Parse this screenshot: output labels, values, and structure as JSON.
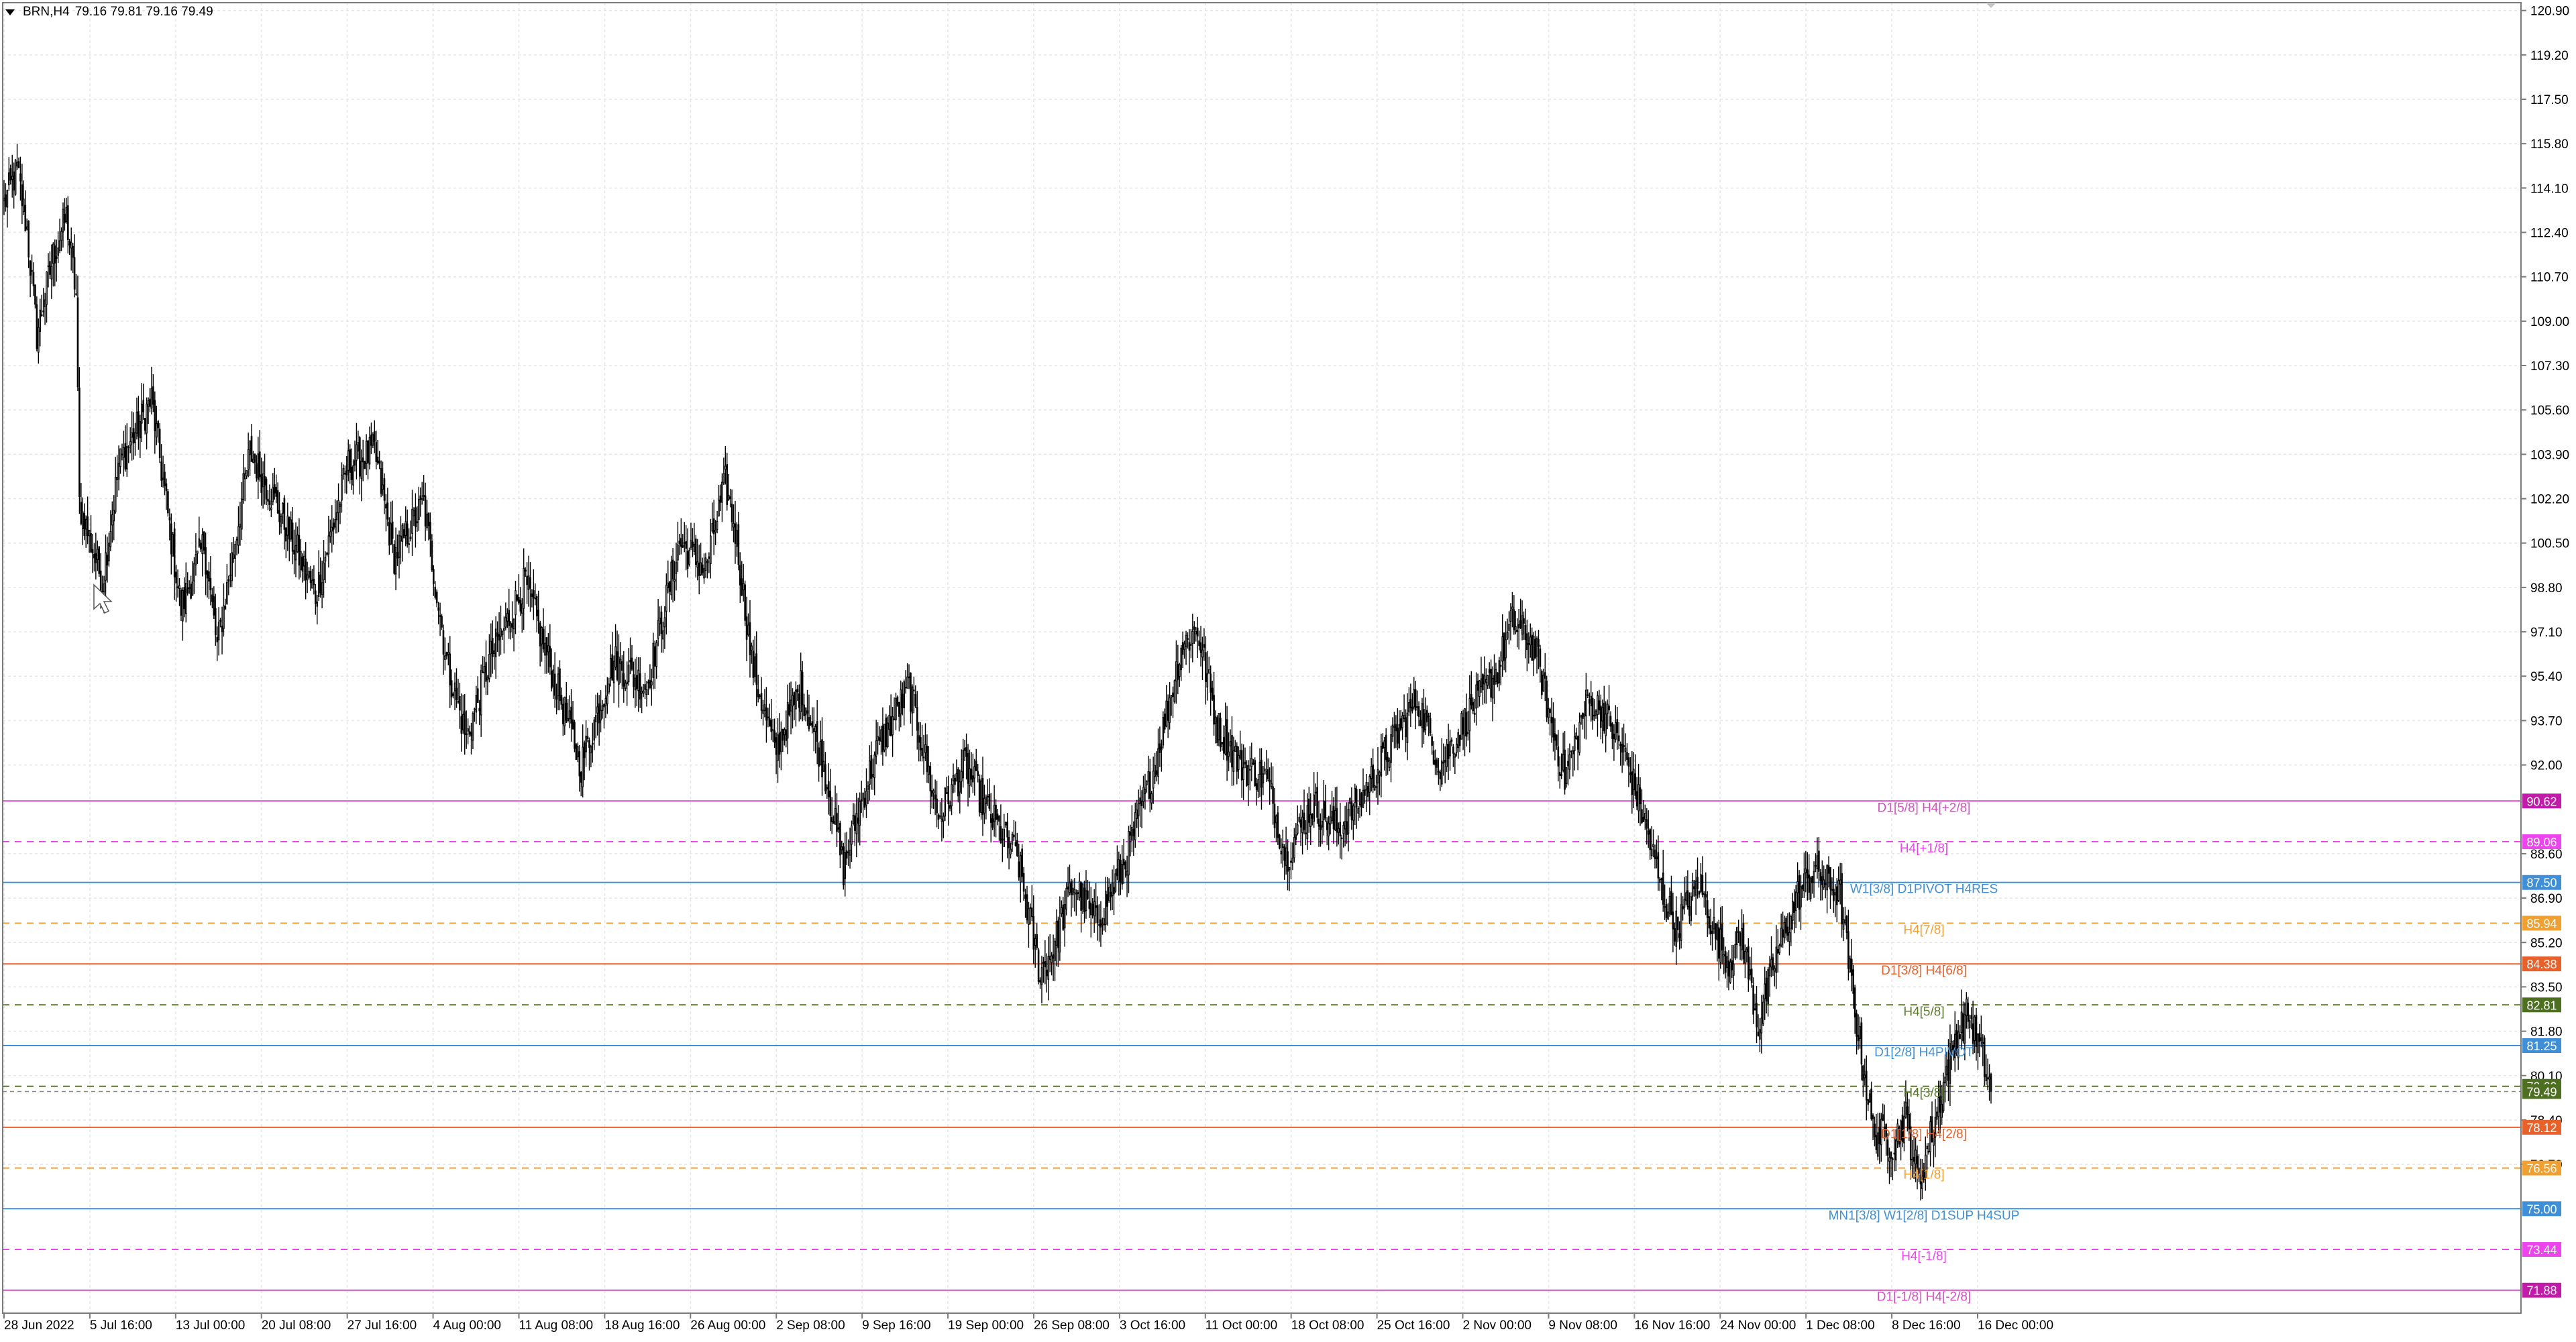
{
  "header": {
    "symbol": "BRN,H4",
    "ohlc": "79.16 79.81 79.16 79.49"
  },
  "price_axis": {
    "ticks": [
      "120.90",
      "119.20",
      "117.50",
      "115.80",
      "114.10",
      "112.40",
      "110.70",
      "109.00",
      "107.30",
      "105.60",
      "103.90",
      "102.20",
      "100.50",
      "98.80",
      "97.10",
      "95.40",
      "93.70",
      "92.00",
      "88.60",
      "86.90",
      "85.20",
      "83.50",
      "81.80",
      "80.10",
      "78.40",
      "76.70"
    ],
    "range": [
      71.0,
      121.2
    ]
  },
  "time_axis": {
    "labels": [
      "28 Jun 2022",
      "5 Jul 16:00",
      "13 Jul 00:00",
      "20 Jul 08:00",
      "27 Jul 16:00",
      "4 Aug 00:00",
      "11 Aug 08:00",
      "18 Aug 16:00",
      "26 Aug 00:00",
      "2 Sep 08:00",
      "9 Sep 16:00",
      "19 Sep 00:00",
      "26 Sep 08:00",
      "3 Oct 16:00",
      "11 Oct 00:00",
      "18 Oct 08:00",
      "25 Oct 16:00",
      "2 Nov 00:00",
      "9 Nov 08:00",
      "16 Nov 16:00",
      "24 Nov 00:00",
      "1 Dec 08:00",
      "8 Dec 16:00",
      "16 Dec 00:00"
    ]
  },
  "levels": [
    {
      "price": 90.62,
      "tag": "90.62",
      "label": "D1[5/8] H4[+2/8]",
      "color": "#d44fc0",
      "tag_bg": "#c21aa9",
      "dash": false
    },
    {
      "price": 89.06,
      "tag": "89.06",
      "label": "H4[+1/8]",
      "color": "#ee44ee",
      "tag_bg": "#ee44ee",
      "dash": true
    },
    {
      "price": 87.5,
      "tag": "87.50",
      "label": "W1[3/8] D1PIVOT H4RES",
      "color": "#3f8fd8",
      "tag_bg": "#3f8fd8",
      "dash": false
    },
    {
      "price": 85.94,
      "tag": "85.94",
      "label": "H4[7/8]",
      "color": "#f0a030",
      "tag_bg": "#f0a030",
      "dash": true
    },
    {
      "price": 84.38,
      "tag": "84.38",
      "label": "D1[3/8] H4[6/8]",
      "color": "#e8602a",
      "tag_bg": "#e8602a",
      "dash": false
    },
    {
      "price": 82.81,
      "tag": "82.81",
      "label": "H4[5/8]",
      "color": "#5a7a2a",
      "tag_bg": "#4c7020",
      "dash": true
    },
    {
      "price": 81.25,
      "tag": "81.25",
      "label": "D1[2/8] H4PIVOT",
      "color": "#3f8fd8",
      "tag_bg": "#3f8fd8",
      "dash": false
    },
    {
      "price": 79.69,
      "tag": "79.69",
      "label": "H4[3/8]",
      "color": "#5a7a2a",
      "tag_bg": "#4c7020",
      "dash": true
    },
    {
      "price": 78.12,
      "tag": "78.12",
      "label": "D1[1/8] H4[2/8]",
      "color": "#e8602a",
      "tag_bg": "#e8602a",
      "dash": false
    },
    {
      "price": 76.56,
      "tag": "76.56",
      "label": "H4[1/8]",
      "color": "#f0a030",
      "tag_bg": "#f0a030",
      "dash": true
    },
    {
      "price": 75.0,
      "tag": "75.00",
      "label": "MN1[3/8] W1[2/8] D1SUP H4SUP",
      "color": "#3f8fd8",
      "tag_bg": "#3f8fd8",
      "dash": false
    },
    {
      "price": 73.44,
      "tag": "73.44",
      "label": "H4[-1/8]",
      "color": "#ee44ee",
      "tag_bg": "#ee44ee",
      "dash": true
    },
    {
      "price": 71.88,
      "tag": "71.88",
      "label": "D1[-1/8] H4[-2/8]",
      "color": "#d44fc0",
      "tag_bg": "#c21aa9",
      "dash": false
    }
  ],
  "current_price": "79.49",
  "current_price_color": "#8a8a8a",
  "chart_data": {
    "type": "candlestick",
    "title": "BRN,H4",
    "anchors": [
      [
        0,
        113.5
      ],
      [
        8,
        114.8
      ],
      [
        14,
        112.5
      ],
      [
        20,
        108.5
      ],
      [
        30,
        111.5
      ],
      [
        38,
        113.0
      ],
      [
        44,
        110.0
      ],
      [
        46,
        102.0
      ],
      [
        60,
        99.0
      ],
      [
        70,
        103.5
      ],
      [
        90,
        106.0
      ],
      [
        108,
        98.0
      ],
      [
        122,
        100.5
      ],
      [
        130,
        96.5
      ],
      [
        150,
        104.0
      ],
      [
        166,
        102.0
      ],
      [
        180,
        100.0
      ],
      [
        190,
        98.5
      ],
      [
        210,
        103.5
      ],
      [
        226,
        104.0
      ],
      [
        238,
        100.0
      ],
      [
        256,
        102.0
      ],
      [
        270,
        96.0
      ],
      [
        282,
        93.0
      ],
      [
        296,
        96.0
      ],
      [
        318,
        99.0
      ],
      [
        332,
        96.0
      ],
      [
        352,
        92.0
      ],
      [
        372,
        96.0
      ],
      [
        392,
        95.0
      ],
      [
        412,
        100.5
      ],
      [
        428,
        99.5
      ],
      [
        440,
        102.8
      ],
      [
        446,
        101.0
      ],
      [
        456,
        96.0
      ],
      [
        470,
        92.5
      ],
      [
        486,
        95.0
      ],
      [
        500,
        92.0
      ],
      [
        512,
        88.0
      ],
      [
        520,
        90.0
      ],
      [
        532,
        92.5
      ],
      [
        552,
        95.0
      ],
      [
        570,
        90.0
      ],
      [
        586,
        92.0
      ],
      [
        602,
        90.0
      ],
      [
        618,
        88.5
      ],
      [
        632,
        84.0
      ],
      [
        640,
        85.0
      ],
      [
        652,
        87.5
      ],
      [
        666,
        86.0
      ],
      [
        682,
        88.0
      ],
      [
        702,
        92.0
      ],
      [
        718,
        96.5
      ],
      [
        728,
        97.2
      ],
      [
        740,
        93.5
      ],
      [
        754,
        92.0
      ],
      [
        770,
        91.5
      ],
      [
        782,
        88.5
      ],
      [
        798,
        90.5
      ],
      [
        814,
        89.5
      ],
      [
        830,
        91.0
      ],
      [
        848,
        93.0
      ],
      [
        862,
        94.5
      ],
      [
        876,
        92.0
      ],
      [
        894,
        94.0
      ],
      [
        910,
        95.5
      ],
      [
        920,
        97.5
      ],
      [
        934,
        96.5
      ],
      [
        944,
        93.5
      ],
      [
        952,
        91.5
      ],
      [
        966,
        94.5
      ],
      [
        976,
        94.0
      ],
      [
        988,
        92.5
      ],
      [
        1000,
        90.0
      ],
      [
        1012,
        87.0
      ],
      [
        1020,
        85.8
      ],
      [
        1034,
        87.5
      ],
      [
        1044,
        85.5
      ],
      [
        1052,
        84.5
      ],
      [
        1060,
        85.5
      ],
      [
        1070,
        82.0
      ],
      [
        1080,
        84.5
      ],
      [
        1094,
        87.0
      ],
      [
        1104,
        88.0
      ],
      [
        1120,
        87.0
      ],
      [
        1128,
        83.0
      ],
      [
        1140,
        78.0
      ],
      [
        1152,
        77.5
      ],
      [
        1160,
        78.5
      ],
      [
        1168,
        76.0
      ],
      [
        1178,
        78.5
      ],
      [
        1190,
        81.5
      ],
      [
        1198,
        82.5
      ],
      [
        1206,
        81.0
      ],
      [
        1212,
        79.5
      ]
    ]
  }
}
